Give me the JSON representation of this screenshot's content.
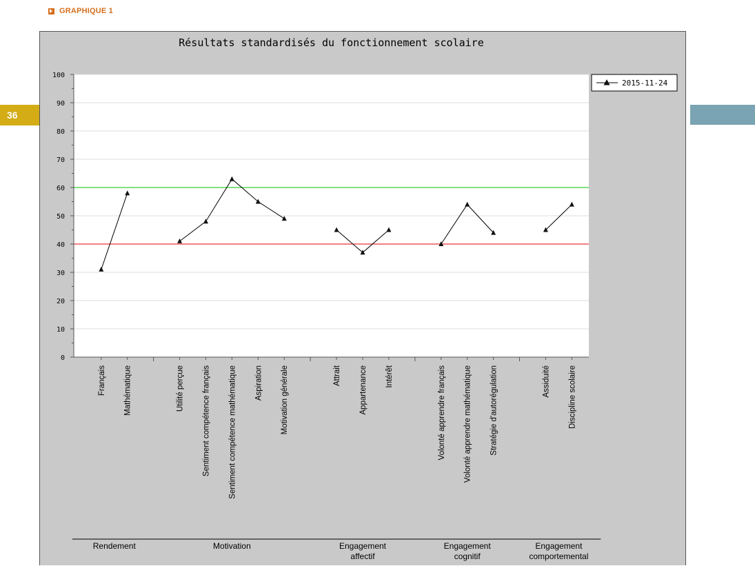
{
  "header": {
    "label": "GRAPHIQUE 1",
    "page_number": "36"
  },
  "colors": {
    "accent": "#d46f1e",
    "page_tab": "#d3ac16",
    "side_tab": "#7aa3b3",
    "upper_reference_line": "#00c000",
    "lower_reference_line": "#e00000"
  },
  "chart_data": {
    "type": "line",
    "title": "Résultats standardisés du fonctionnement scolaire",
    "xlabel": "",
    "ylabel": "",
    "ylim": [
      0,
      100
    ],
    "yticks": [
      0,
      10,
      20,
      30,
      40,
      50,
      60,
      70,
      80,
      90,
      100
    ],
    "grid": true,
    "legend_position": "top-right",
    "reference_lines": [
      60,
      40
    ],
    "groups": [
      {
        "label": [
          "Rendement"
        ],
        "categories": [
          "Français",
          "Mathématique"
        ],
        "values": [
          31,
          58
        ]
      },
      {
        "label": [
          "Motivation"
        ],
        "categories": [
          "Utilité perçue",
          "Sentiment compétence français",
          "Sentiment compétence mathématique",
          "Aspiration",
          "Motivation générale"
        ],
        "values": [
          41,
          48,
          63,
          55,
          49
        ]
      },
      {
        "label": [
          "Engagement",
          "affectif"
        ],
        "categories": [
          "Attrait",
          "Appartenance",
          "Intérêt"
        ],
        "values": [
          45,
          37,
          45
        ]
      },
      {
        "label": [
          "Engagement",
          "cognitif"
        ],
        "categories": [
          "Volonté apprendre français",
          "Volonté apprendre mathématique",
          "Stratégie d'autorégulation"
        ],
        "values": [
          40,
          54,
          44
        ]
      },
      {
        "label": [
          "Engagement",
          "comportemental"
        ],
        "categories": [
          "Assiduité",
          "Discipline scolaire"
        ],
        "values": [
          45,
          54
        ]
      }
    ],
    "series": [
      {
        "name": "2015-11-24"
      }
    ]
  }
}
